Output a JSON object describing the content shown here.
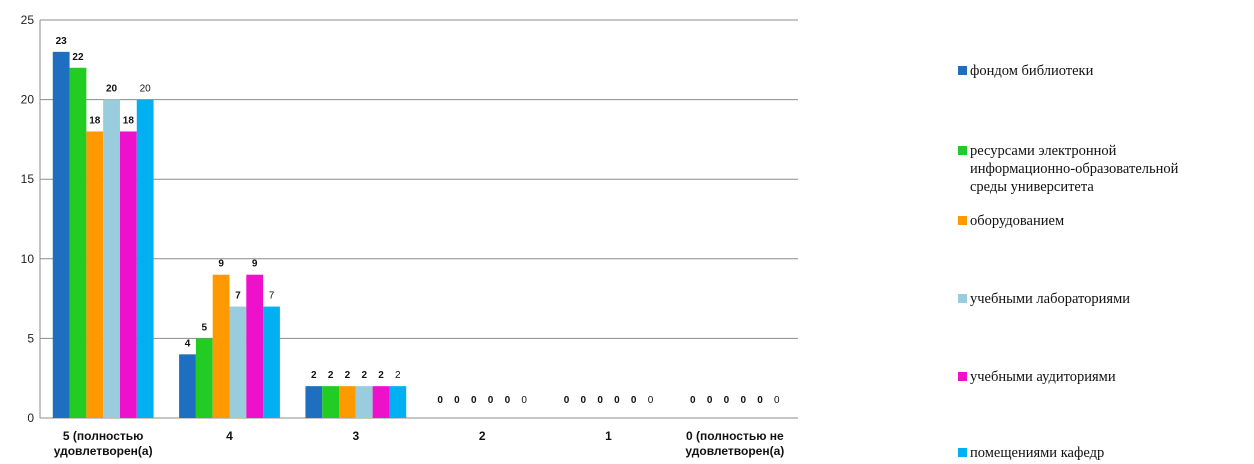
{
  "chart_data": {
    "type": "bar",
    "title": "",
    "xlabel": "",
    "ylabel": "",
    "ylim": [
      0,
      25
    ],
    "yticks": [
      0,
      5,
      10,
      15,
      20,
      25
    ],
    "grid": true,
    "legend_position": "right",
    "categories": [
      "5 (полностью\nудовлетворен(а)",
      "4",
      "3",
      "2",
      "1",
      "0 (полностью не\nудовлетворен(а)"
    ],
    "series": [
      {
        "name": "фондом библиотеки",
        "color": "#1f6fc0",
        "values": [
          23,
          4,
          2,
          0,
          0,
          0
        ]
      },
      {
        "name": "ресурсами электронной\nинформационно-образовательной\nсреды университета",
        "color": "#22cc22",
        "values": [
          22,
          5,
          2,
          0,
          0,
          0
        ]
      },
      {
        "name": "оборудованием",
        "color": "#ff9900",
        "values": [
          18,
          9,
          2,
          0,
          0,
          0
        ]
      },
      {
        "name": "учебными лабораториями",
        "color": "#99ccdd",
        "values": [
          20,
          7,
          2,
          0,
          0,
          0
        ]
      },
      {
        "name": "учебными аудиториями",
        "color": "#ee11cc",
        "values": [
          18,
          9,
          2,
          0,
          0,
          0
        ]
      },
      {
        "name": "помещениями кафедр",
        "color": "#00b0f0",
        "values": [
          20,
          7,
          2,
          0,
          0,
          0
        ]
      }
    ]
  }
}
